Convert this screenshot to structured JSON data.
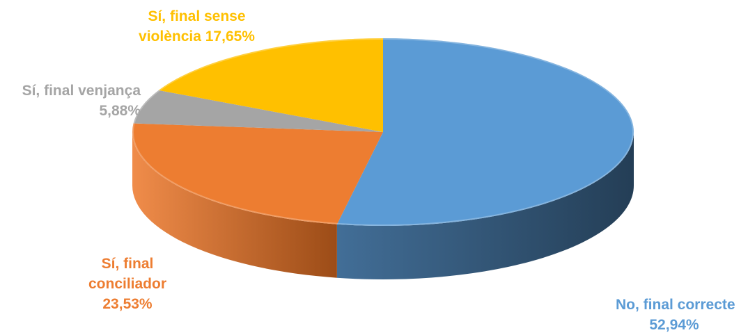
{
  "chart_data": {
    "type": "pie",
    "variant": "3d",
    "title": "",
    "start_angle_deg": 0,
    "direction": "clockwise",
    "data_labels_shown": true,
    "legend": "none",
    "slices": [
      {
        "label_line1": "No, final correcte",
        "value_text": "52,94%",
        "value": 52.94,
        "color": "#5b9bd5",
        "side_dark": "#243e56",
        "side_light": "#426e97"
      },
      {
        "label_line1": "Sí, final",
        "label_line2": "conciliador",
        "value_text": "23,53%",
        "value": 23.53,
        "color": "#ed7d31",
        "side_dark": "#9c4c17",
        "side_light": "#f08c4a"
      },
      {
        "label_line1": "Sí, final venjança",
        "value_text": "5,88%",
        "value": 5.88,
        "color": "#a5a5a5",
        "side_dark": "#6e6e6e",
        "side_light": "#8f8f8f"
      },
      {
        "label_line1": "Sí, final sense",
        "label_line2": "violència",
        "value_text": "17,65%",
        "value": 17.65,
        "color": "#ffc000",
        "side_dark": "#a37a00",
        "side_light": "#d8a300"
      }
    ]
  }
}
